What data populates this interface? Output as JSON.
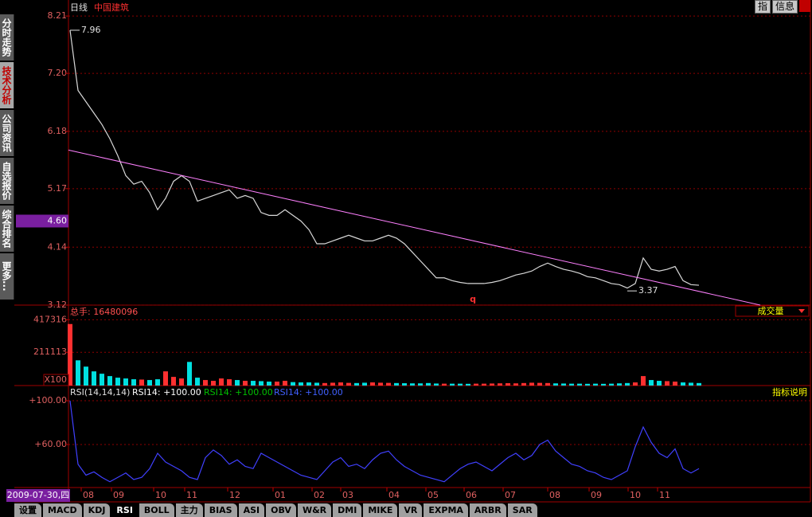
{
  "ui": {
    "left_tabs": [
      "分时走势",
      "技术分析",
      "公司资讯",
      "自选报价",
      "综合排名",
      "更多..."
    ],
    "active_left_tab": 1,
    "bottom_tabs": [
      "设置",
      "MACD",
      "KDJ",
      "RSI",
      "BOLL",
      "主力",
      "BIAS",
      "ASI",
      "OBV",
      "W&R",
      "DMI",
      "MIKE",
      "VR",
      "EXPMA",
      "ARBR",
      "SAR"
    ],
    "active_bottom_tab": 3,
    "top_buttons": [
      "指",
      "信息"
    ],
    "cursor_date": "2009-07-30,四",
    "dropdown": "成交量",
    "indicator_help": "指标说明",
    "marker": "q"
  },
  "chart_data": [
    {
      "type": "line",
      "title": "日线",
      "subtitle": "中国建筑",
      "color": "#d8d8d8",
      "values": [
        7.96,
        6.9,
        6.7,
        6.5,
        6.3,
        6.05,
        5.75,
        5.4,
        5.25,
        5.3,
        5.1,
        4.8,
        5.0,
        5.3,
        5.4,
        5.3,
        4.95,
        5.0,
        5.05,
        5.1,
        5.15,
        5.0,
        5.05,
        5.0,
        4.75,
        4.7,
        4.7,
        4.8,
        4.7,
        4.6,
        4.45,
        4.2,
        4.2,
        4.25,
        4.3,
        4.35,
        4.3,
        4.25,
        4.25,
        4.3,
        4.35,
        4.3,
        4.2,
        4.05,
        3.9,
        3.75,
        3.6,
        3.6,
        3.55,
        3.52,
        3.5,
        3.5,
        3.5,
        3.52,
        3.55,
        3.6,
        3.65,
        3.68,
        3.72,
        3.8,
        3.86,
        3.8,
        3.75,
        3.72,
        3.68,
        3.62,
        3.6,
        3.55,
        3.5,
        3.48,
        3.42,
        3.5,
        3.95,
        3.75,
        3.72,
        3.75,
        3.8,
        3.55,
        3.48,
        3.47
      ],
      "xlim": [
        -0.2,
        93
      ],
      "ylim": [
        3.12,
        8.38
      ],
      "yticks": [
        8.21,
        {
          "value": 7.2,
          "label": "7.20"
        },
        6.18,
        5.17,
        4.14,
        3.12
      ],
      "grid": true,
      "annotations": [
        {
          "value": 7.96,
          "index": 0
        },
        {
          "value": 3.37,
          "index": 70
        }
      ],
      "cursor_price": {
        "value": 4.6,
        "label": "4.60"
      },
      "trendline": {
        "x": [
          -0.2,
          86.7
        ],
        "y": [
          5.85,
          3.12
        ],
        "color": "#ff80ff"
      }
    },
    {
      "type": "bar",
      "title": "总手: 16480096",
      "unit": "X100",
      "up_color": "#ff3030",
      "down_color": "#00e0e0",
      "values": [
        390000,
        160000,
        120000,
        90000,
        75000,
        60000,
        50000,
        45000,
        40000,
        38000,
        35000,
        40000,
        90000,
        55000,
        45000,
        150000,
        50000,
        35000,
        30000,
        45000,
        40000,
        35000,
        30000,
        30000,
        28000,
        25000,
        25000,
        30000,
        22000,
        20000,
        20000,
        18000,
        16000,
        18000,
        20000,
        17000,
        16000,
        18000,
        20000,
        18000,
        17000,
        16000,
        15000,
        14000,
        14000,
        16000,
        13000,
        12000,
        12000,
        12000,
        11000,
        12000,
        12000,
        13000,
        14000,
        15000,
        14000,
        16000,
        18000,
        17000,
        16000,
        14000,
        13000,
        12000,
        12000,
        11000,
        12000,
        11000,
        12000,
        14000,
        16000,
        20000,
        60000,
        35000,
        30000,
        28000,
        25000,
        20000,
        18000,
        16000
      ],
      "ylim": [
        0,
        510000
      ],
      "yticks": [
        417316,
        211113
      ],
      "grid": true
    },
    {
      "type": "line",
      "title": "RSI(14,14,14)",
      "color": "#4040ff",
      "readouts": [
        {
          "text": "RSI14: +100.00",
          "color": "#ffffff"
        },
        {
          "text": "RSI14: +100.00",
          "color": "#00c000"
        },
        {
          "text": "RSI14: +100.00",
          "color": "#4060ff"
        }
      ],
      "values": [
        100,
        42,
        32,
        35,
        30,
        26,
        30,
        34,
        28,
        30,
        38,
        52,
        44,
        40,
        36,
        30,
        28,
        48,
        55,
        50,
        42,
        46,
        40,
        38,
        52,
        48,
        44,
        40,
        36,
        32,
        30,
        28,
        36,
        44,
        48,
        40,
        42,
        38,
        46,
        52,
        54,
        46,
        40,
        36,
        32,
        30,
        28,
        26,
        32,
        38,
        42,
        44,
        40,
        36,
        42,
        48,
        52,
        46,
        50,
        60,
        64,
        54,
        48,
        42,
        40,
        36,
        34,
        30,
        28,
        32,
        36,
        58,
        76,
        62,
        52,
        48,
        56,
        38,
        34,
        38
      ],
      "ylim": [
        20.7,
        112.4
      ],
      "yticks": [
        {
          "value": 100,
          "label": "+100.00"
        },
        {
          "value": 60,
          "label": "+60.00"
        }
      ],
      "grid": true,
      "xticks": [
        {
          "value": 1.4,
          "label": "08"
        },
        {
          "value": 5.2,
          "label": "09"
        },
        {
          "value": 10.5,
          "label": "10"
        },
        {
          "value": 14.4,
          "label": "11"
        },
        {
          "value": 19.8,
          "label": "12"
        },
        {
          "value": 25.5,
          "label": "01"
        },
        {
          "value": 30.4,
          "label": "02"
        },
        {
          "value": 34,
          "label": "03"
        },
        {
          "value": 39.8,
          "label": "04"
        },
        {
          "value": 44.7,
          "label": "05"
        },
        {
          "value": 49.5,
          "label": "06"
        },
        {
          "value": 54.4,
          "label": "07"
        },
        {
          "value": 60,
          "label": "08"
        },
        {
          "value": 65.2,
          "label": "09"
        },
        {
          "value": 70.1,
          "label": "10"
        },
        {
          "value": 73.8,
          "label": "11"
        }
      ]
    }
  ]
}
